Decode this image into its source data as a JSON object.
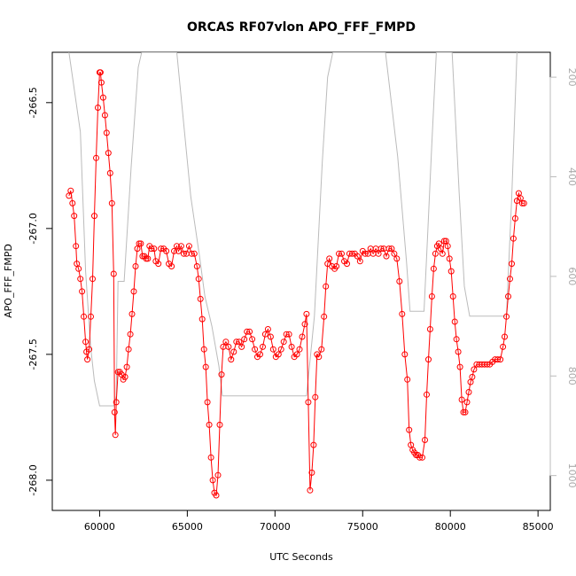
{
  "chart_data": {
    "type": "scatter",
    "title": "ORCAS RF07vlon APO_FFF_FMPD",
    "xlabel": "UTC Seconds",
    "ylabel": "APO_FFF_FMPD",
    "xlim": [
      57300,
      85700
    ],
    "ylim": [
      -268.12,
      -266.3
    ],
    "x_ticks": [
      60000,
      65000,
      70000,
      75000,
      80000,
      85000
    ],
    "x_tick_labels": [
      "60000",
      "65000",
      "70000",
      "75000",
      "80000",
      "85000"
    ],
    "y_ticks": [
      -268.0,
      -267.5,
      -267.0,
      -266.5
    ],
    "y_tick_labels": [
      "-268.0",
      "-267.5",
      "-267.0",
      "-266.5"
    ],
    "y2lim": [
      1070,
      150
    ],
    "y2_ticks": [
      200,
      400,
      600,
      800,
      1000
    ],
    "y2_tick_labels": [
      "200",
      "400",
      "600",
      "800",
      "1000"
    ],
    "colors": {
      "primary": "#ff0000",
      "secondary": "#bbbbbb",
      "frame": "#000000"
    },
    "series": [
      {
        "name": "APO_FFF_FMPD",
        "axis": "left",
        "style": "points-and-lines",
        "points": [
          [
            58250,
            -266.87
          ],
          [
            58350,
            -266.85
          ],
          [
            58450,
            -266.9
          ],
          [
            58550,
            -266.95
          ],
          [
            58650,
            -267.07
          ],
          [
            58700,
            -267.14
          ],
          [
            58800,
            -267.16
          ],
          [
            58900,
            -267.2
          ],
          [
            59000,
            -267.25
          ],
          [
            59100,
            -267.35
          ],
          [
            59200,
            -267.45
          ],
          [
            59250,
            -267.49
          ],
          [
            59300,
            -267.52
          ],
          [
            59400,
            -267.48
          ],
          [
            59500,
            -267.35
          ],
          [
            59600,
            -267.2
          ],
          [
            59700,
            -266.95
          ],
          [
            59800,
            -266.72
          ],
          [
            59900,
            -266.52
          ],
          [
            60000,
            -266.38
          ],
          [
            60050,
            -266.38
          ],
          [
            60100,
            -266.42
          ],
          [
            60200,
            -266.48
          ],
          [
            60300,
            -266.55
          ],
          [
            60400,
            -266.62
          ],
          [
            60500,
            -266.7
          ],
          [
            60600,
            -266.78
          ],
          [
            60700,
            -266.9
          ],
          [
            60800,
            -267.18
          ],
          [
            60850,
            -267.73
          ],
          [
            60900,
            -267.82
          ],
          [
            60950,
            -267.69
          ],
          [
            61050,
            -267.57
          ],
          [
            61150,
            -267.57
          ],
          [
            61250,
            -267.58
          ],
          [
            61350,
            -267.6
          ],
          [
            61450,
            -267.59
          ],
          [
            61550,
            -267.55
          ],
          [
            61650,
            -267.48
          ],
          [
            61750,
            -267.42
          ],
          [
            61850,
            -267.34
          ],
          [
            61950,
            -267.25
          ],
          [
            62050,
            -267.15
          ],
          [
            62150,
            -267.08
          ],
          [
            62250,
            -267.06
          ],
          [
            62350,
            -267.06
          ],
          [
            62450,
            -267.11
          ],
          [
            62550,
            -267.11
          ],
          [
            62650,
            -267.12
          ],
          [
            62750,
            -267.12
          ],
          [
            62850,
            -267.07
          ],
          [
            62950,
            -267.08
          ],
          [
            63100,
            -267.08
          ],
          [
            63200,
            -267.13
          ],
          [
            63350,
            -267.14
          ],
          [
            63500,
            -267.08
          ],
          [
            63650,
            -267.08
          ],
          [
            63800,
            -267.09
          ],
          [
            63950,
            -267.14
          ],
          [
            64100,
            -267.15
          ],
          [
            64250,
            -267.09
          ],
          [
            64400,
            -267.07
          ],
          [
            64500,
            -267.09
          ],
          [
            64650,
            -267.07
          ],
          [
            64800,
            -267.1
          ],
          [
            64950,
            -267.1
          ],
          [
            65100,
            -267.07
          ],
          [
            65250,
            -267.1
          ],
          [
            65400,
            -267.1
          ],
          [
            65550,
            -267.15
          ],
          [
            65650,
            -267.2
          ],
          [
            65750,
            -267.28
          ],
          [
            65850,
            -267.36
          ],
          [
            65950,
            -267.48
          ],
          [
            66050,
            -267.55
          ],
          [
            66150,
            -267.69
          ],
          [
            66250,
            -267.78
          ],
          [
            66350,
            -267.91
          ],
          [
            66450,
            -268.0
          ],
          [
            66550,
            -268.05
          ],
          [
            66650,
            -268.06
          ],
          [
            66750,
            -267.98
          ],
          [
            66850,
            -267.78
          ],
          [
            66950,
            -267.58
          ],
          [
            67050,
            -267.47
          ],
          [
            67200,
            -267.45
          ],
          [
            67350,
            -267.47
          ],
          [
            67500,
            -267.52
          ],
          [
            67650,
            -267.49
          ],
          [
            67800,
            -267.45
          ],
          [
            67950,
            -267.45
          ],
          [
            68100,
            -267.47
          ],
          [
            68250,
            -267.44
          ],
          [
            68400,
            -267.41
          ],
          [
            68550,
            -267.41
          ],
          [
            68700,
            -267.44
          ],
          [
            68850,
            -267.48
          ],
          [
            69000,
            -267.51
          ],
          [
            69150,
            -267.5
          ],
          [
            69300,
            -267.47
          ],
          [
            69450,
            -267.42
          ],
          [
            69600,
            -267.4
          ],
          [
            69750,
            -267.43
          ],
          [
            69900,
            -267.48
          ],
          [
            70050,
            -267.51
          ],
          [
            70200,
            -267.5
          ],
          [
            70350,
            -267.48
          ],
          [
            70500,
            -267.45
          ],
          [
            70650,
            -267.42
          ],
          [
            70800,
            -267.42
          ],
          [
            70950,
            -267.47
          ],
          [
            71100,
            -267.51
          ],
          [
            71250,
            -267.5
          ],
          [
            71400,
            -267.48
          ],
          [
            71550,
            -267.43
          ],
          [
            71700,
            -267.38
          ],
          [
            71800,
            -267.34
          ],
          [
            71900,
            -267.69
          ],
          [
            72000,
            -268.04
          ],
          [
            72100,
            -267.97
          ],
          [
            72200,
            -267.86
          ],
          [
            72300,
            -267.67
          ],
          [
            72400,
            -267.5
          ],
          [
            72500,
            -267.51
          ],
          [
            72650,
            -267.48
          ],
          [
            72800,
            -267.35
          ],
          [
            72900,
            -267.23
          ],
          [
            73000,
            -267.14
          ],
          [
            73100,
            -267.12
          ],
          [
            73250,
            -267.15
          ],
          [
            73400,
            -267.16
          ],
          [
            73500,
            -267.15
          ],
          [
            73650,
            -267.1
          ],
          [
            73800,
            -267.1
          ],
          [
            73950,
            -267.13
          ],
          [
            74100,
            -267.14
          ],
          [
            74250,
            -267.1
          ],
          [
            74400,
            -267.1
          ],
          [
            74550,
            -267.1
          ],
          [
            74700,
            -267.11
          ],
          [
            74850,
            -267.13
          ],
          [
            75000,
            -267.09
          ],
          [
            75150,
            -267.1
          ],
          [
            75300,
            -267.1
          ],
          [
            75450,
            -267.08
          ],
          [
            75600,
            -267.1
          ],
          [
            75750,
            -267.08
          ],
          [
            75900,
            -267.1
          ],
          [
            76050,
            -267.08
          ],
          [
            76200,
            -267.08
          ],
          [
            76350,
            -267.11
          ],
          [
            76500,
            -267.08
          ],
          [
            76650,
            -267.08
          ],
          [
            76800,
            -267.1
          ],
          [
            76950,
            -267.12
          ],
          [
            77100,
            -267.21
          ],
          [
            77250,
            -267.34
          ],
          [
            77400,
            -267.5
          ],
          [
            77550,
            -267.6
          ],
          [
            77650,
            -267.8
          ],
          [
            77750,
            -267.86
          ],
          [
            77850,
            -267.88
          ],
          [
            77950,
            -267.89
          ],
          [
            78050,
            -267.9
          ],
          [
            78150,
            -267.9
          ],
          [
            78250,
            -267.91
          ],
          [
            78400,
            -267.91
          ],
          [
            78550,
            -267.84
          ],
          [
            78650,
            -267.66
          ],
          [
            78750,
            -267.52
          ],
          [
            78850,
            -267.4
          ],
          [
            78950,
            -267.27
          ],
          [
            79050,
            -267.16
          ],
          [
            79150,
            -267.1
          ],
          [
            79250,
            -267.07
          ],
          [
            79350,
            -267.06
          ],
          [
            79450,
            -267.08
          ],
          [
            79550,
            -267.1
          ],
          [
            79650,
            -267.05
          ],
          [
            79750,
            -267.05
          ],
          [
            79850,
            -267.07
          ],
          [
            79950,
            -267.12
          ],
          [
            80050,
            -267.17
          ],
          [
            80150,
            -267.27
          ],
          [
            80250,
            -267.37
          ],
          [
            80350,
            -267.44
          ],
          [
            80450,
            -267.49
          ],
          [
            80550,
            -267.55
          ],
          [
            80650,
            -267.68
          ],
          [
            80750,
            -267.73
          ],
          [
            80850,
            -267.73
          ],
          [
            80950,
            -267.69
          ],
          [
            81050,
            -267.65
          ],
          [
            81150,
            -267.61
          ],
          [
            81250,
            -267.59
          ],
          [
            81350,
            -267.56
          ],
          [
            81500,
            -267.54
          ],
          [
            81650,
            -267.54
          ],
          [
            81800,
            -267.54
          ],
          [
            81950,
            -267.54
          ],
          [
            82100,
            -267.54
          ],
          [
            82250,
            -267.54
          ],
          [
            82400,
            -267.53
          ],
          [
            82550,
            -267.52
          ],
          [
            82700,
            -267.52
          ],
          [
            82850,
            -267.52
          ],
          [
            83000,
            -267.47
          ],
          [
            83100,
            -267.43
          ],
          [
            83200,
            -267.35
          ],
          [
            83300,
            -267.27
          ],
          [
            83400,
            -267.2
          ],
          [
            83500,
            -267.14
          ],
          [
            83600,
            -267.04
          ],
          [
            83700,
            -266.96
          ],
          [
            83800,
            -266.89
          ],
          [
            83900,
            -266.86
          ],
          [
            84000,
            -266.88
          ],
          [
            84100,
            -266.9
          ],
          [
            84200,
            -266.9
          ]
        ]
      },
      {
        "name": "secondary",
        "axis": "right",
        "style": "line",
        "points": [
          [
            58250,
            150
          ],
          [
            58900,
            310
          ],
          [
            59200,
            590
          ],
          [
            59500,
            745
          ],
          [
            59700,
            810
          ],
          [
            60000,
            860
          ],
          [
            60800,
            860
          ],
          [
            60950,
            840
          ],
          [
            61050,
            610
          ],
          [
            61400,
            610
          ],
          [
            61800,
            380
          ],
          [
            62200,
            180
          ],
          [
            62400,
            150
          ],
          [
            64400,
            150
          ],
          [
            65200,
            440
          ],
          [
            65700,
            560
          ],
          [
            66000,
            640
          ],
          [
            66400,
            700
          ],
          [
            66800,
            780
          ],
          [
            67000,
            840
          ],
          [
            71800,
            840
          ],
          [
            72250,
            680
          ],
          [
            72700,
            370
          ],
          [
            73000,
            200
          ],
          [
            73300,
            150
          ],
          [
            76300,
            150
          ],
          [
            77000,
            360
          ],
          [
            77500,
            570
          ],
          [
            77700,
            670
          ],
          [
            78500,
            670
          ],
          [
            78700,
            520
          ],
          [
            78950,
            330
          ],
          [
            79200,
            150
          ],
          [
            80100,
            150
          ],
          [
            80500,
            430
          ],
          [
            80800,
            620
          ],
          [
            81100,
            680
          ],
          [
            83200,
            680
          ],
          [
            83500,
            440
          ],
          [
            83800,
            150
          ]
        ]
      }
    ]
  }
}
